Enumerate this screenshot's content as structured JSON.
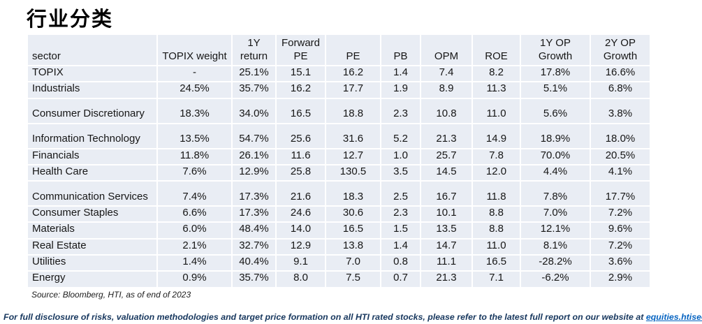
{
  "title": "行业分类",
  "table": {
    "headers": [
      "sector",
      "TOPIX weight",
      "1Y\nreturn",
      "Forward\nPE",
      "PE",
      "PB",
      "OPM",
      "ROE",
      "1Y OP\nGrowth",
      "2Y OP\nGrowth"
    ],
    "rows": [
      {
        "sector": "TOPIX",
        "tall": false,
        "values": [
          "-",
          "25.1%",
          "15.1",
          "16.2",
          "1.4",
          "7.4",
          "8.2",
          "17.8%",
          "16.6%"
        ]
      },
      {
        "sector": "Industrials",
        "tall": false,
        "values": [
          "24.5%",
          "35.7%",
          "16.2",
          "17.7",
          "1.9",
          "8.9",
          "11.3",
          "5.1%",
          "6.8%"
        ]
      },
      {
        "sector": "Consumer Discretionary",
        "tall": true,
        "values": [
          "18.3%",
          "34.0%",
          "16.5",
          "18.8",
          "2.3",
          "10.8",
          "11.0",
          "5.6%",
          "3.8%"
        ]
      },
      {
        "sector": "Information Technology",
        "tall": true,
        "values": [
          "13.5%",
          "54.7%",
          "25.6",
          "31.6",
          "5.2",
          "21.3",
          "14.9",
          "18.9%",
          "18.0%"
        ]
      },
      {
        "sector": "Financials",
        "tall": false,
        "values": [
          "11.8%",
          "26.1%",
          "11.6",
          "12.7",
          "1.0",
          "25.7",
          "7.8",
          "70.0%",
          "20.5%"
        ]
      },
      {
        "sector": "Health Care",
        "tall": false,
        "values": [
          "7.6%",
          "12.9%",
          "25.8",
          "130.5",
          "3.5",
          "14.5",
          "12.0",
          "4.4%",
          "4.1%"
        ]
      },
      {
        "sector": "Communication Services",
        "tall": true,
        "values": [
          "7.4%",
          "17.3%",
          "21.6",
          "18.3",
          "2.5",
          "16.7",
          "11.8",
          "7.8%",
          "17.7%"
        ]
      },
      {
        "sector": "Consumer Staples",
        "tall": false,
        "values": [
          "6.6%",
          "17.3%",
          "24.6",
          "30.6",
          "2.3",
          "10.1",
          "8.8",
          "7.0%",
          "7.2%"
        ]
      },
      {
        "sector": "Materials",
        "tall": false,
        "values": [
          "6.0%",
          "48.4%",
          "14.0",
          "16.5",
          "1.5",
          "13.5",
          "8.8",
          "12.1%",
          "9.6%"
        ]
      },
      {
        "sector": "Real Estate",
        "tall": false,
        "values": [
          "2.1%",
          "32.7%",
          "12.9",
          "13.8",
          "1.4",
          "14.7",
          "11.0",
          "8.1%",
          "7.2%"
        ]
      },
      {
        "sector": "Utilities",
        "tall": false,
        "values": [
          "1.4%",
          "40.4%",
          "9.1",
          "7.0",
          "0.8",
          "11.1",
          "16.5",
          "-28.2%",
          "3.6%"
        ]
      },
      {
        "sector": "Energy",
        "tall": false,
        "values": [
          "0.9%",
          "35.7%",
          "8.0",
          "7.5",
          "0.7",
          "21.3",
          "7.1",
          "-6.2%",
          "2.9%"
        ]
      }
    ]
  },
  "source_note": "Source: Bloomberg, HTI, as of end of 2023",
  "disclaimer": {
    "text_before_link": "For full disclosure of risks, valuation methodologies and target price formation on all HTI rated stocks, please refer to the latest full report on our website at ",
    "link": "equities.htisec.com"
  },
  "colors": {
    "cell_background": "#E9EDF4",
    "gridline": "#FFFFFF",
    "body_text": "#161616",
    "disclaimer_text": "#17375E",
    "link": "#0563C1"
  }
}
